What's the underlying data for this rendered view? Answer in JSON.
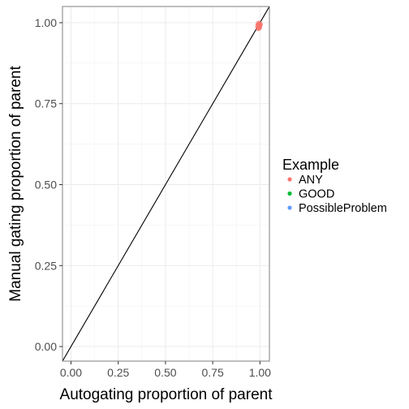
{
  "chart_data": {
    "type": "scatter",
    "xlabel": "Autogating proportion of parent",
    "ylabel": "Manual gating proportion of parent",
    "xlim": [
      -0.045,
      1.05
    ],
    "ylim": [
      -0.045,
      1.05
    ],
    "x_ticks": [
      {
        "value": 0.0,
        "label": "0.00"
      },
      {
        "value": 0.25,
        "label": "0.25"
      },
      {
        "value": 0.5,
        "label": "0.50"
      },
      {
        "value": 0.75,
        "label": "0.75"
      },
      {
        "value": 1.0,
        "label": "1.00"
      }
    ],
    "y_ticks": [
      {
        "value": 0.0,
        "label": "0.00"
      },
      {
        "value": 0.25,
        "label": "0.25"
      },
      {
        "value": 0.5,
        "label": "0.50"
      },
      {
        "value": 0.75,
        "label": "0.75"
      },
      {
        "value": 1.0,
        "label": "1.00"
      }
    ],
    "grid": true,
    "reference_line": {
      "slope": 1,
      "intercept": 0,
      "color": "#000000"
    },
    "legend": {
      "title": "Example",
      "position": "right",
      "entries": [
        {
          "label": "ANY",
          "color": "#F8766D"
        },
        {
          "label": "GOOD",
          "color": "#00BA38"
        },
        {
          "label": "PossibleProblem",
          "color": "#619CFF"
        }
      ]
    },
    "series": [
      {
        "name": "ANY",
        "color": "#F8766D",
        "points": [
          {
            "x": 0.995,
            "y": 0.985
          },
          {
            "x": 0.99,
            "y": 0.99
          },
          {
            "x": 0.997,
            "y": 0.993
          },
          {
            "x": 0.993,
            "y": 0.997
          },
          {
            "x": 1.0,
            "y": 0.995
          },
          {
            "x": 0.996,
            "y": 0.988
          },
          {
            "x": 0.992,
            "y": 0.983
          }
        ]
      },
      {
        "name": "GOOD",
        "color": "#00BA38",
        "points": []
      },
      {
        "name": "PossibleProblem",
        "color": "#619CFF",
        "points": []
      }
    ]
  }
}
